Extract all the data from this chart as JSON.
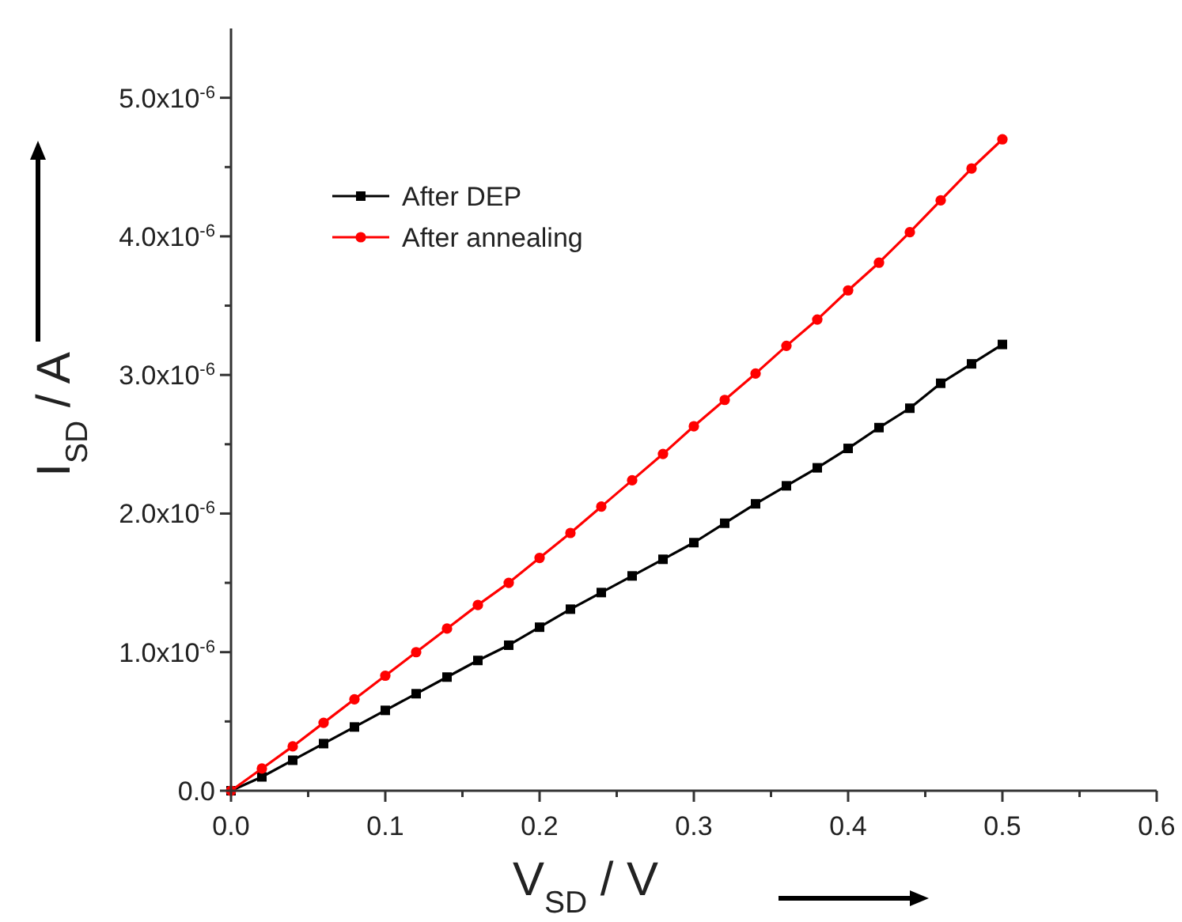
{
  "chart_data": {
    "type": "line",
    "xlabel": "V$_{SD}$ / V",
    "ylabel": "I$_{SD}$ / A",
    "x": [
      0,
      0.02,
      0.04,
      0.06,
      0.08,
      0.1,
      0.12,
      0.14,
      0.16,
      0.18,
      0.2,
      0.22,
      0.24,
      0.26,
      0.28,
      0.3,
      0.32,
      0.34,
      0.36,
      0.38,
      0.4,
      0.42,
      0.44,
      0.46,
      0.48,
      0.5
    ],
    "series": [
      {
        "name": "After DEP",
        "color": "#000000",
        "marker": "square",
        "values": [
          0,
          1e-07,
          2.2e-07,
          3.4e-07,
          4.6e-07,
          5.8e-07,
          7e-07,
          8.2e-07,
          9.4e-07,
          1.05e-06,
          1.18e-06,
          1.31e-06,
          1.43e-06,
          1.55e-06,
          1.67e-06,
          1.79e-06,
          1.93e-06,
          2.07e-06,
          2.2e-06,
          2.33e-06,
          2.47e-06,
          2.62e-06,
          2.76e-06,
          2.94e-06,
          3.08e-06,
          3.22e-06
        ]
      },
      {
        "name": "After annealing",
        "color": "#ff0000",
        "marker": "circle",
        "values": [
          0,
          1.6e-07,
          3.2e-07,
          4.9e-07,
          6.6e-07,
          8.3e-07,
          1e-06,
          1.17e-06,
          1.34e-06,
          1.5e-06,
          1.68e-06,
          1.86e-06,
          2.05e-06,
          2.24e-06,
          2.43e-06,
          2.63e-06,
          2.82e-06,
          3.01e-06,
          3.21e-06,
          3.4e-06,
          3.61e-06,
          3.81e-06,
          4.03e-06,
          4.26e-06,
          4.49e-06,
          4.7e-06
        ]
      }
    ],
    "xlim": [
      0,
      0.6
    ],
    "xticks": [
      {
        "value": 0,
        "label": "0.0"
      },
      {
        "value": 0.05,
        "label": null
      },
      0.1,
      {
        "value": 0.15,
        "label": null
      },
      0.2,
      {
        "value": 0.25,
        "label": null
      },
      0.3,
      {
        "value": 0.35,
        "label": null
      },
      0.4,
      {
        "value": 0.45,
        "label": null
      },
      0.5,
      {
        "value": 0.55,
        "label": null
      },
      0.6
    ],
    "ylim": [
      0,
      5.5e-06
    ],
    "yticks": [
      {
        "value": 0,
        "label": "0.0"
      },
      {
        "value": 5e-07,
        "label": null
      },
      {
        "value": 1e-06,
        "label": "1.0x10$^{-6}$"
      },
      {
        "value": 1.5e-06,
        "label": null
      },
      {
        "value": 2e-06,
        "label": "2.0x10$^{-6}$"
      },
      {
        "value": 2.5e-06,
        "label": null
      },
      {
        "value": 3e-06,
        "label": "3.0x10$^{-6}$"
      },
      {
        "value": 3.5e-06,
        "label": null
      },
      {
        "value": 4e-06,
        "label": "4.0x10$^{-6}$"
      },
      {
        "value": 4.5e-06,
        "label": null
      },
      {
        "value": 5e-06,
        "label": "5.0x10$^{-6}$"
      }
    ],
    "grid": false,
    "legend": "top left",
    "line_style": "solid"
  }
}
